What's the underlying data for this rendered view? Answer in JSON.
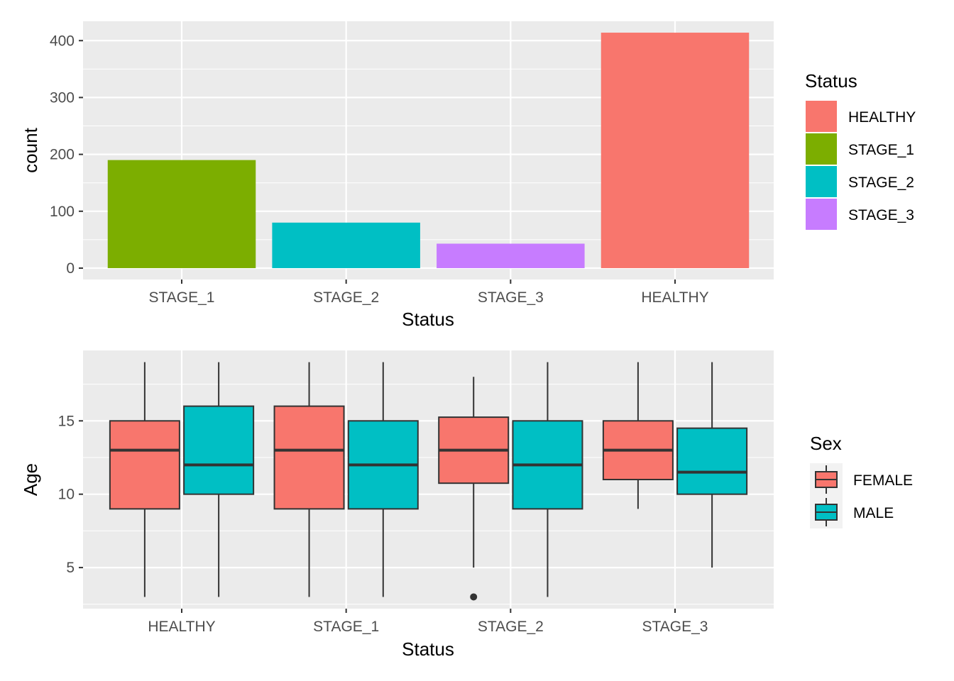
{
  "colors": {
    "panel_bg": "#EBEBEB",
    "grid_major": "#FFFFFF",
    "tick": "#333333",
    "HEALTHY": "#F8766D",
    "STAGE_1": "#7CAE00",
    "STAGE_2": "#00BFC4",
    "STAGE_3": "#C77CFF",
    "FEMALE": "#F8766D",
    "MALE": "#00BFC4",
    "box_line": "#333333"
  },
  "chart_data": [
    {
      "type": "bar",
      "xlabel": "Status",
      "ylabel": "count",
      "categories": [
        "STAGE_1",
        "STAGE_2",
        "STAGE_3",
        "HEALTHY"
      ],
      "values": [
        190,
        80,
        43,
        414
      ],
      "ylim": [
        -20,
        434
      ],
      "yticks": [
        0,
        100,
        200,
        300,
        400
      ],
      "grid": true,
      "legend": {
        "title": "Status",
        "position": "right",
        "entries": [
          "HEALTHY",
          "STAGE_1",
          "STAGE_2",
          "STAGE_3"
        ]
      }
    },
    {
      "type": "boxplot",
      "xlabel": "Status",
      "ylabel": "Age",
      "categories": [
        "HEALTHY",
        "STAGE_1",
        "STAGE_2",
        "STAGE_3"
      ],
      "ylim": [
        2.2,
        19.8
      ],
      "yticks": [
        5,
        10,
        15
      ],
      "grid": true,
      "series": [
        {
          "name": "FEMALE",
          "boxes": [
            {
              "min": 3,
              "q1": 9,
              "median": 13,
              "q3": 15,
              "max": 19,
              "outliers": []
            },
            {
              "min": 3,
              "q1": 9,
              "median": 13,
              "q3": 16,
              "max": 19,
              "outliers": []
            },
            {
              "min": 5,
              "q1": 10.75,
              "median": 13,
              "q3": 15.25,
              "max": 18,
              "outliers": [
                3
              ]
            },
            {
              "min": 9,
              "q1": 11,
              "median": 13,
              "q3": 15,
              "max": 19,
              "outliers": []
            }
          ]
        },
        {
          "name": "MALE",
          "boxes": [
            {
              "min": 3,
              "q1": 10,
              "median": 12,
              "q3": 16,
              "max": 19,
              "outliers": []
            },
            {
              "min": 3,
              "q1": 9,
              "median": 12,
              "q3": 15,
              "max": 19,
              "outliers": []
            },
            {
              "min": 3,
              "q1": 9,
              "median": 12,
              "q3": 15,
              "max": 19,
              "outliers": []
            },
            {
              "min": 5,
              "q1": 10,
              "median": 11.5,
              "q3": 14.5,
              "max": 19,
              "outliers": []
            }
          ]
        }
      ],
      "legend": {
        "title": "Sex",
        "position": "right",
        "entries": [
          "FEMALE",
          "MALE"
        ]
      }
    }
  ]
}
